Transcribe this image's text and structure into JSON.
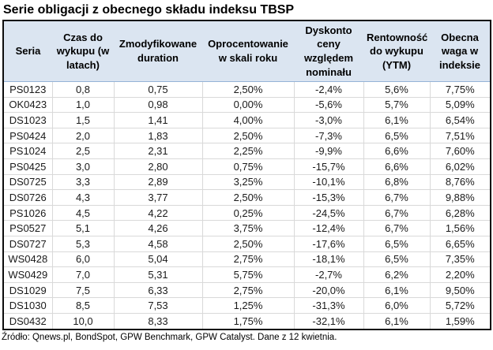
{
  "title": "Serie obligacji z obecnego składu indeksu TBSP",
  "source_note": "Źródło: Qnews.pl, BondSpot, GPW Benchmark, GPW Catalyst. Dane z 12 kwietnia.",
  "style": {
    "header_bg": "#dbe5f1",
    "header_separator": "#95b3d7",
    "gridline": "#d9d9d9",
    "outer_border": "#0d0d0d"
  },
  "table": {
    "headers": [
      "Seria",
      "Czas do wykupu (w latach)",
      "Zmodyfikowane duration",
      "Oprocentowanie w skali roku",
      "Dyskonto ceny względem nominału",
      "Rentowność do wykupu (YTM)",
      "Obecna waga w indeksie"
    ],
    "header_keys": [
      "seria",
      "czas-do-wykupu",
      "zmodyfikowane-duration",
      "oprocentowanie",
      "dyskonto-ceny",
      "rentownosc-ytm",
      "waga-w-indeksie"
    ],
    "rows": [
      [
        "PS0123",
        "0,8",
        "0,75",
        "2,50%",
        "-2,4%",
        "5,6%",
        "7,75%"
      ],
      [
        "OK0423",
        "1,0",
        "0,98",
        "0,00%",
        "-5,6%",
        "5,7%",
        "5,09%"
      ],
      [
        "DS1023",
        "1,5",
        "1,41",
        "4,00%",
        "-3,0%",
        "6,1%",
        "6,54%"
      ],
      [
        "PS0424",
        "2,0",
        "1,83",
        "2,50%",
        "-7,3%",
        "6,5%",
        "7,51%"
      ],
      [
        "PS1024",
        "2,5",
        "2,31",
        "2,25%",
        "-9,9%",
        "6,6%",
        "7,60%"
      ],
      [
        "PS0425",
        "3,0",
        "2,80",
        "0,75%",
        "-15,7%",
        "6,6%",
        "6,02%"
      ],
      [
        "DS0725",
        "3,3",
        "2,89",
        "3,25%",
        "-10,1%",
        "6,8%",
        "8,76%"
      ],
      [
        "DS0726",
        "4,3",
        "3,77",
        "2,50%",
        "-15,3%",
        "6,7%",
        "9,88%"
      ],
      [
        "PS1026",
        "4,5",
        "4,22",
        "0,25%",
        "-24,5%",
        "6,7%",
        "6,28%"
      ],
      [
        "PS0527",
        "5,1",
        "4,26",
        "3,75%",
        "-12,4%",
        "6,7%",
        "1,56%"
      ],
      [
        "DS0727",
        "5,3",
        "4,58",
        "2,50%",
        "-17,6%",
        "6,5%",
        "6,65%"
      ],
      [
        "WS0428",
        "6,0",
        "5,04",
        "2,75%",
        "-18,1%",
        "6,5%",
        "7,35%"
      ],
      [
        "WS0429",
        "7,0",
        "5,31",
        "5,75%",
        "-2,7%",
        "6,2%",
        "2,20%"
      ],
      [
        "DS1029",
        "7,5",
        "6,33",
        "2,75%",
        "-20,0%",
        "6,1%",
        "9,50%"
      ],
      [
        "DS1030",
        "8,5",
        "7,53",
        "1,25%",
        "-31,3%",
        "6,0%",
        "5,72%"
      ],
      [
        "DS0432",
        "10,0",
        "8,33",
        "1,75%",
        "-32,1%",
        "6,1%",
        "1,59%"
      ]
    ]
  }
}
